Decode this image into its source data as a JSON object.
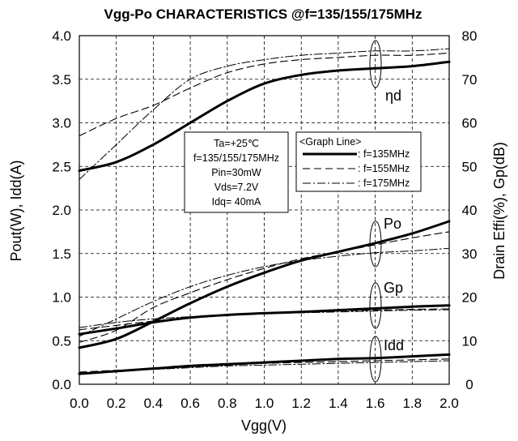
{
  "chart_data": {
    "type": "line",
    "title": "Vgg-Po CHARACTERISTICS  @f=135/155/175MHz",
    "xlabel": "Vgg(V)",
    "ylabel": "Pout(W), Idd(A)",
    "ylabel_right": "Drain Effi(%), Gp(dB)",
    "xlim": [
      0,
      2
    ],
    "ylim": [
      0,
      4
    ],
    "ylim_right": [
      0,
      80
    ],
    "x_ticks": [
      "0.0",
      "0.2",
      "0.4",
      "0.6",
      "0.8",
      "1.0",
      "1.2",
      "1.4",
      "1.6",
      "1.8",
      "2.0"
    ],
    "y_ticks": [
      "0.0",
      "0.5",
      "1.0",
      "1.5",
      "2.0",
      "2.5",
      "3.0",
      "3.5",
      "4.0"
    ],
    "y_ticks_right": [
      "0",
      "10",
      "20",
      "30",
      "40",
      "50",
      "60",
      "70",
      "80"
    ],
    "grid": true,
    "conditions": [
      "Ta=+25℃",
      "f=135/155/175MHz",
      "Pin=30mW",
      "Vds=7.2V",
      "Idq= 40mA"
    ],
    "legend_title": "<Graph Line>",
    "legend": [
      {
        "label": ": f=135MHz",
        "style": "solid"
      },
      {
        "label": ": f=155MHz",
        "style": "dash"
      },
      {
        "label": ": f=175MHz",
        "style": "dashdot"
      }
    ],
    "curve_labels": [
      "ηd",
      "Po",
      "Gp",
      "Idd"
    ],
    "x": [
      0.0,
      0.2,
      0.4,
      0.6,
      0.8,
      1.0,
      1.2,
      1.4,
      1.6,
      1.8,
      2.0
    ],
    "series": [
      {
        "group": "ηd",
        "axis": "right",
        "style": "solid",
        "values": [
          49,
          51,
          55,
          60,
          65,
          69,
          71,
          72,
          72.5,
          73,
          74
        ]
      },
      {
        "group": "ηd",
        "axis": "right",
        "style": "dash",
        "values": [
          57,
          61,
          64,
          68,
          71.5,
          73.5,
          74.5,
          75,
          75.5,
          75.5,
          76
        ]
      },
      {
        "group": "ηd",
        "axis": "right",
        "style": "dashdot",
        "values": [
          47,
          55,
          63,
          70,
          73,
          74.5,
          75.5,
          76,
          76.5,
          76.5,
          77
        ]
      },
      {
        "group": "Po",
        "axis": "left",
        "style": "solid",
        "values": [
          0.42,
          0.52,
          0.72,
          0.93,
          1.12,
          1.28,
          1.42,
          1.52,
          1.62,
          1.73,
          1.87
        ]
      },
      {
        "group": "Po",
        "axis": "left",
        "style": "dash",
        "values": [
          0.48,
          0.62,
          0.88,
          1.05,
          1.2,
          1.33,
          1.44,
          1.52,
          1.6,
          1.68,
          1.75
        ]
      },
      {
        "group": "Po",
        "axis": "left",
        "style": "dashdot",
        "values": [
          0.55,
          0.75,
          0.95,
          1.12,
          1.25,
          1.35,
          1.42,
          1.47,
          1.51,
          1.53,
          1.56
        ]
      },
      {
        "group": "Gp",
        "axis": "right",
        "style": "solid",
        "values": [
          11.5,
          12.8,
          14.2,
          15.3,
          15.9,
          16.3,
          16.6,
          17,
          17.4,
          17.8,
          18.1
        ]
      },
      {
        "group": "Gp",
        "axis": "right",
        "style": "dash",
        "values": [
          12.5,
          13.5,
          14.5,
          15.3,
          15.8,
          16.2,
          16.5,
          16.8,
          17,
          17.2,
          17.3
        ]
      },
      {
        "group": "Gp",
        "axis": "right",
        "style": "dashdot",
        "values": [
          13,
          14.2,
          15,
          15.5,
          15.9,
          16.2,
          16.4,
          16.6,
          16.8,
          17,
          17.1
        ]
      },
      {
        "group": "Idd",
        "axis": "left",
        "style": "solid",
        "values": [
          0.12,
          0.15,
          0.18,
          0.21,
          0.23,
          0.25,
          0.27,
          0.29,
          0.3,
          0.32,
          0.34
        ]
      },
      {
        "group": "Idd",
        "axis": "left",
        "style": "dash",
        "values": [
          0.14,
          0.16,
          0.18,
          0.2,
          0.22,
          0.24,
          0.25,
          0.26,
          0.27,
          0.28,
          0.29
        ]
      },
      {
        "group": "Idd",
        "axis": "left",
        "style": "dashdot",
        "values": [
          0.13,
          0.15,
          0.17,
          0.19,
          0.21,
          0.22,
          0.23,
          0.24,
          0.25,
          0.26,
          0.27
        ]
      }
    ]
  }
}
